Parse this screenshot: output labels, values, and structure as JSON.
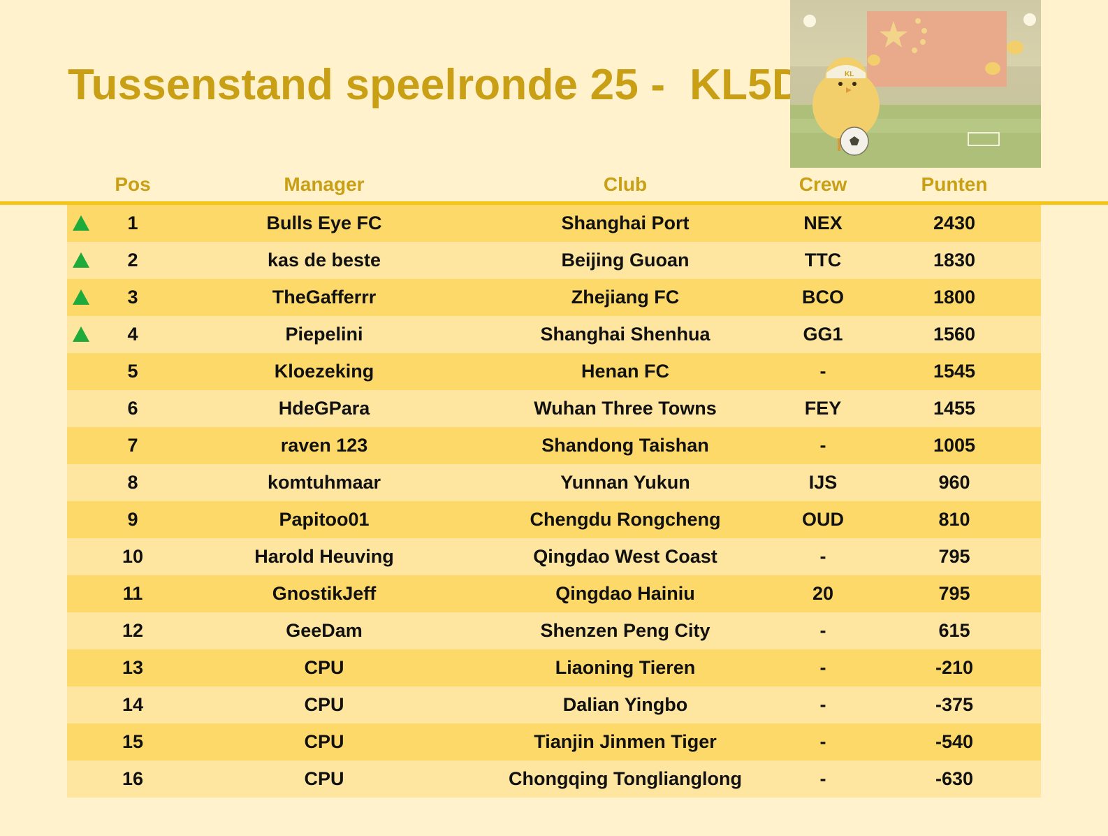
{
  "title": "Tussenstand speelronde 25 -  KL5D",
  "hero_image": {
    "badge_text": "KL"
  },
  "columns": [
    "Pos",
    "Manager",
    "Club",
    "Crew",
    "Punten"
  ],
  "rows": [
    {
      "pos": "1",
      "manager": "Bulls Eye FC",
      "club": "Shanghai Port",
      "crew": "NEX",
      "points": "2430",
      "trend": "up"
    },
    {
      "pos": "2",
      "manager": "kas de beste",
      "club": "Beijing Guoan",
      "crew": "TTC",
      "points": "1830",
      "trend": "up"
    },
    {
      "pos": "3",
      "manager": "TheGafferrr",
      "club": "Zhejiang FC",
      "crew": "BCO",
      "points": "1800",
      "trend": "up"
    },
    {
      "pos": "4",
      "manager": "Piepelini",
      "club": "Shanghai Shenhua",
      "crew": "GG1",
      "points": "1560",
      "trend": "up"
    },
    {
      "pos": "5",
      "manager": "Kloezeking",
      "club": "Henan FC",
      "crew": "-",
      "points": "1545",
      "trend": ""
    },
    {
      "pos": "6",
      "manager": "HdeGPara",
      "club": "Wuhan Three Towns",
      "crew": "FEY",
      "points": "1455",
      "trend": ""
    },
    {
      "pos": "7",
      "manager": "raven 123",
      "club": "Shandong Taishan",
      "crew": "-",
      "points": "1005",
      "trend": ""
    },
    {
      "pos": "8",
      "manager": "komtuhmaar",
      "club": "Yunnan Yukun",
      "crew": "IJS",
      "points": "960",
      "trend": ""
    },
    {
      "pos": "9",
      "manager": "Papitoo01",
      "club": "Chengdu Rongcheng",
      "crew": "OUD",
      "points": "810",
      "trend": ""
    },
    {
      "pos": "10",
      "manager": "Harold Heuving",
      "club": "Qingdao West Coast",
      "crew": "-",
      "points": "795",
      "trend": ""
    },
    {
      "pos": "11",
      "manager": "GnostikJeff",
      "club": "Qingdao Hainiu",
      "crew": "20",
      "points": "795",
      "trend": ""
    },
    {
      "pos": "12",
      "manager": "GeeDam",
      "club": "Shenzen Peng City",
      "crew": "-",
      "points": "615",
      "trend": ""
    },
    {
      "pos": "13",
      "manager": "CPU",
      "club": "Liaoning Tieren",
      "crew": "-",
      "points": "-210",
      "trend": ""
    },
    {
      "pos": "14",
      "manager": "CPU",
      "club": "Dalian Yingbo",
      "crew": "-",
      "points": "-375",
      "trend": ""
    },
    {
      "pos": "15",
      "manager": "CPU",
      "club": "Tianjin Jinmen Tiger",
      "crew": "-",
      "points": "-540",
      "trend": ""
    },
    {
      "pos": "16",
      "manager": "CPU",
      "club": "Chongqing Tonglianglong",
      "crew": "-",
      "points": "-630",
      "trend": ""
    }
  ],
  "colors": {
    "background": "#fff2cc",
    "title": "#c9a015",
    "row_odd": "#fdd96a",
    "row_even": "#fee6a0",
    "trend_up": "#1faa3c"
  }
}
